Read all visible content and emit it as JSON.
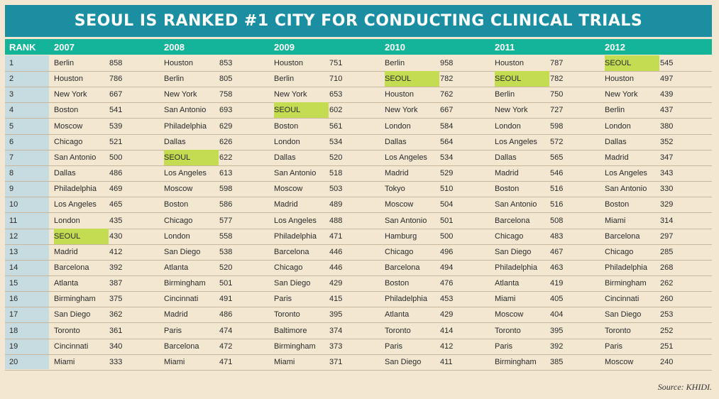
{
  "title": "SEOUL IS RANKED #1 CITY FOR CONDUCTING CLINICAL TRIALS",
  "header": {
    "rank_label": "RANK",
    "years": [
      "2007",
      "2008",
      "2009",
      "2010",
      "2011",
      "2012"
    ]
  },
  "highlight_city": "SEOUL",
  "highlight_color": "#c3dc52",
  "rows": [
    {
      "rank": "1",
      "cells": [
        {
          "city": "Berlin",
          "value": "858"
        },
        {
          "city": "Houston",
          "value": "853"
        },
        {
          "city": "Houston",
          "value": "751"
        },
        {
          "city": "Berlin",
          "value": "958"
        },
        {
          "city": "Houston",
          "value": "787"
        },
        {
          "city": "SEOUL",
          "value": "545"
        }
      ]
    },
    {
      "rank": "2",
      "cells": [
        {
          "city": "Houston",
          "value": "786"
        },
        {
          "city": "Berlin",
          "value": "805"
        },
        {
          "city": "Berlin",
          "value": "710"
        },
        {
          "city": "SEOUL",
          "value": "782"
        },
        {
          "city": "SEOUL",
          "value": "782"
        },
        {
          "city": "Houston",
          "value": "497"
        }
      ]
    },
    {
      "rank": "3",
      "cells": [
        {
          "city": "New York",
          "value": "667"
        },
        {
          "city": "New York",
          "value": "758"
        },
        {
          "city": "New York",
          "value": "653"
        },
        {
          "city": "Houston",
          "value": "762"
        },
        {
          "city": "Berlin",
          "value": "750"
        },
        {
          "city": "New York",
          "value": "439"
        }
      ]
    },
    {
      "rank": "4",
      "cells": [
        {
          "city": "Boston",
          "value": "541"
        },
        {
          "city": "San Antonio",
          "value": "693"
        },
        {
          "city": "SEOUL",
          "value": "602"
        },
        {
          "city": "New York",
          "value": "667"
        },
        {
          "city": "New York",
          "value": "727"
        },
        {
          "city": "Berlin",
          "value": "437"
        }
      ]
    },
    {
      "rank": "5",
      "cells": [
        {
          "city": "Moscow",
          "value": "539"
        },
        {
          "city": "Philadelphia",
          "value": "629"
        },
        {
          "city": "Boston",
          "value": "561"
        },
        {
          "city": "London",
          "value": "584"
        },
        {
          "city": "London",
          "value": "598"
        },
        {
          "city": "London",
          "value": "380"
        }
      ]
    },
    {
      "rank": "6",
      "cells": [
        {
          "city": "Chicago",
          "value": "521"
        },
        {
          "city": "Dallas",
          "value": "626"
        },
        {
          "city": "London",
          "value": "534"
        },
        {
          "city": "Dallas",
          "value": "564"
        },
        {
          "city": "Los Angeles",
          "value": "572"
        },
        {
          "city": "Dallas",
          "value": "352"
        }
      ]
    },
    {
      "rank": "7",
      "cells": [
        {
          "city": "San Antonio",
          "value": "500"
        },
        {
          "city": "SEOUL",
          "value": "622"
        },
        {
          "city": "Dallas",
          "value": "520"
        },
        {
          "city": "Los Angeles",
          "value": "534"
        },
        {
          "city": "Dallas",
          "value": "565"
        },
        {
          "city": "Madrid",
          "value": "347"
        }
      ]
    },
    {
      "rank": "8",
      "cells": [
        {
          "city": "Dallas",
          "value": "486"
        },
        {
          "city": "Los Angeles",
          "value": "613"
        },
        {
          "city": "San Antonio",
          "value": "518"
        },
        {
          "city": "Madrid",
          "value": "529"
        },
        {
          "city": "Madrid",
          "value": "546"
        },
        {
          "city": "Los Angeles",
          "value": "343"
        }
      ]
    },
    {
      "rank": "9",
      "cells": [
        {
          "city": "Philadelphia",
          "value": "469"
        },
        {
          "city": "Moscow",
          "value": "598"
        },
        {
          "city": "Moscow",
          "value": "503"
        },
        {
          "city": "Tokyo",
          "value": "510"
        },
        {
          "city": "Boston",
          "value": "516"
        },
        {
          "city": "San Antonio",
          "value": "330"
        }
      ]
    },
    {
      "rank": "10",
      "cells": [
        {
          "city": "Los Angeles",
          "value": "465"
        },
        {
          "city": "Boston",
          "value": "586"
        },
        {
          "city": "Madrid",
          "value": "489"
        },
        {
          "city": "Moscow",
          "value": "504"
        },
        {
          "city": "San Antonio",
          "value": "516"
        },
        {
          "city": "Boston",
          "value": "329"
        }
      ]
    },
    {
      "rank": "11",
      "cells": [
        {
          "city": "London",
          "value": "435"
        },
        {
          "city": "Chicago",
          "value": "577"
        },
        {
          "city": "Los Angeles",
          "value": "488"
        },
        {
          "city": "San Antonio",
          "value": "501"
        },
        {
          "city": "Barcelona",
          "value": "508"
        },
        {
          "city": "Miami",
          "value": "314"
        }
      ]
    },
    {
      "rank": "12",
      "cells": [
        {
          "city": "SEOUL",
          "value": "430"
        },
        {
          "city": "London",
          "value": "558"
        },
        {
          "city": "Philadelphia",
          "value": "471"
        },
        {
          "city": "Hamburg",
          "value": "500"
        },
        {
          "city": "Chicago",
          "value": "483"
        },
        {
          "city": "Barcelona",
          "value": "297"
        }
      ]
    },
    {
      "rank": "13",
      "cells": [
        {
          "city": "Madrid",
          "value": "412"
        },
        {
          "city": "San Diego",
          "value": "538"
        },
        {
          "city": "Barcelona",
          "value": "446"
        },
        {
          "city": "Chicago",
          "value": "496"
        },
        {
          "city": "San Diego",
          "value": "467"
        },
        {
          "city": "Chicago",
          "value": "285"
        }
      ]
    },
    {
      "rank": "14",
      "cells": [
        {
          "city": "Barcelona",
          "value": "392"
        },
        {
          "city": "Atlanta",
          "value": "520"
        },
        {
          "city": "Chicago",
          "value": "446"
        },
        {
          "city": "Barcelona",
          "value": "494"
        },
        {
          "city": "Philadelphia",
          "value": "463"
        },
        {
          "city": "Philadelphia",
          "value": "268"
        }
      ]
    },
    {
      "rank": "15",
      "cells": [
        {
          "city": "Atlanta",
          "value": "387"
        },
        {
          "city": "Birmingham",
          "value": "501"
        },
        {
          "city": "San Diego",
          "value": "429"
        },
        {
          "city": "Boston",
          "value": "476"
        },
        {
          "city": "Atlanta",
          "value": "419"
        },
        {
          "city": "Birmingham",
          "value": "262"
        }
      ]
    },
    {
      "rank": "16",
      "cells": [
        {
          "city": "Birmingham",
          "value": "375"
        },
        {
          "city": "Cincinnati",
          "value": "491"
        },
        {
          "city": "Paris",
          "value": "415"
        },
        {
          "city": "Philadelphia",
          "value": "453"
        },
        {
          "city": "Miami",
          "value": "405"
        },
        {
          "city": "Cincinnati",
          "value": "260"
        }
      ]
    },
    {
      "rank": "17",
      "cells": [
        {
          "city": "San Diego",
          "value": "362"
        },
        {
          "city": "Madrid",
          "value": "486"
        },
        {
          "city": "Toronto",
          "value": "395"
        },
        {
          "city": "Atlanta",
          "value": "429"
        },
        {
          "city": "Moscow",
          "value": "404"
        },
        {
          "city": "San Diego",
          "value": "253"
        }
      ]
    },
    {
      "rank": "18",
      "cells": [
        {
          "city": "Toronto",
          "value": "361"
        },
        {
          "city": "Paris",
          "value": "474"
        },
        {
          "city": "Baltimore",
          "value": "374"
        },
        {
          "city": "Toronto",
          "value": "414"
        },
        {
          "city": "Toronto",
          "value": "395"
        },
        {
          "city": "Toronto",
          "value": "252"
        }
      ]
    },
    {
      "rank": "19",
      "cells": [
        {
          "city": "Cincinnati",
          "value": "340"
        },
        {
          "city": "Barcelona",
          "value": "472"
        },
        {
          "city": "Birmingham",
          "value": "373"
        },
        {
          "city": "Paris",
          "value": "412"
        },
        {
          "city": "Paris",
          "value": "392"
        },
        {
          "city": "Paris",
          "value": "251"
        }
      ]
    },
    {
      "rank": "20",
      "cells": [
        {
          "city": "Miami",
          "value": "333"
        },
        {
          "city": "Miami",
          "value": "471"
        },
        {
          "city": "Miami",
          "value": "371"
        },
        {
          "city": "San Diego",
          "value": "411"
        },
        {
          "city": "Birmingham",
          "value": "385"
        },
        {
          "city": "Moscow",
          "value": "240"
        }
      ]
    }
  ],
  "source": "Source: KHIDI."
}
